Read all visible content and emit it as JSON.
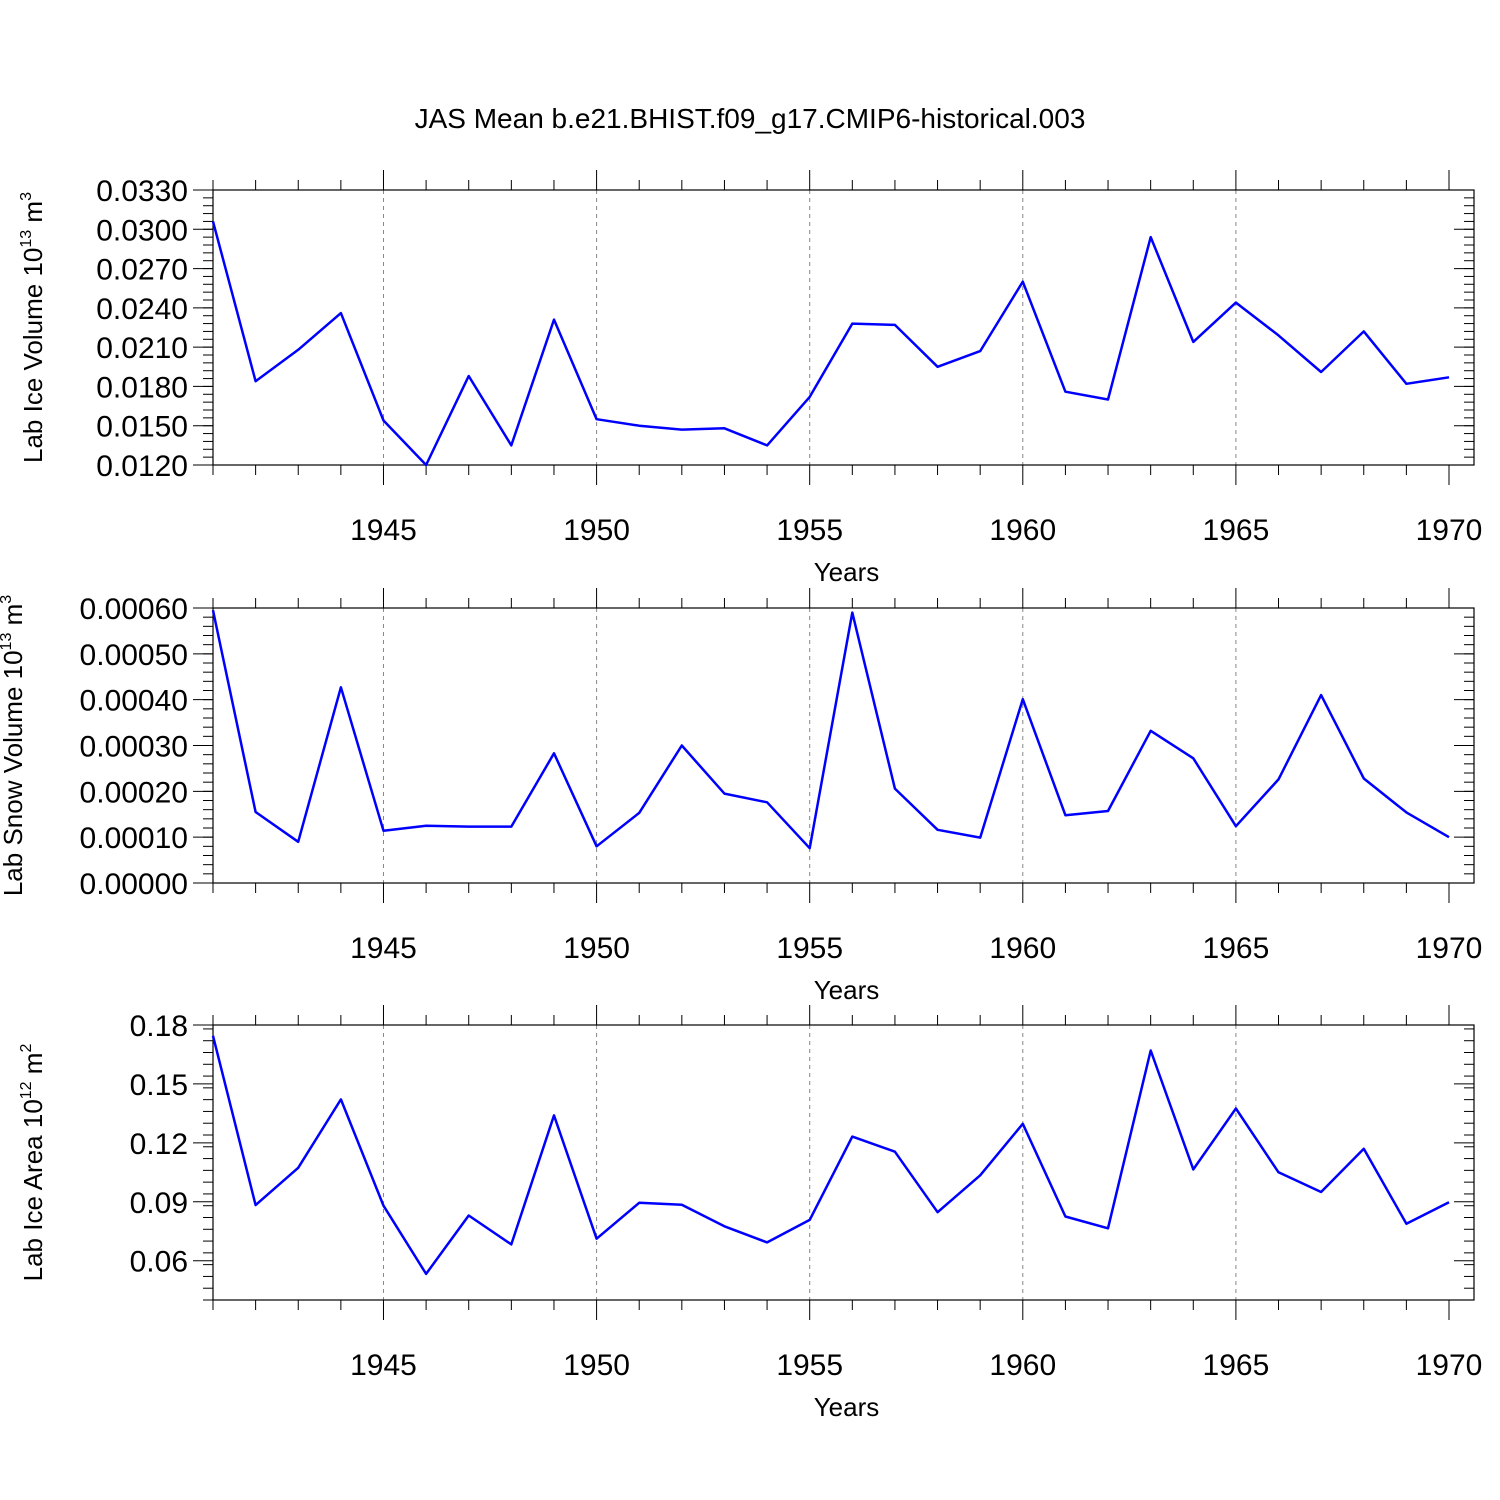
{
  "title": "JAS Mean b.e21.BHIST.f09_g17.CMIP6-historical.003",
  "colors": {
    "line": "#0000ff",
    "frame": "#000000",
    "grid": "#888888"
  },
  "chart_data": [
    {
      "type": "line",
      "ylabel_main": "Lab Ice Volume 10",
      "ylabel_exp": "13",
      "ylabel_unit": " m",
      "ylabel_unit_exp": "3",
      "xlabel": "Years",
      "xlim": [
        1941,
        1970
      ],
      "ylim": [
        0.012,
        0.033
      ],
      "yticks": [
        "0.0120",
        "0.0150",
        "0.0180",
        "0.0210",
        "0.0240",
        "0.0270",
        "0.0300",
        "0.0330"
      ],
      "xticks": [
        "1945",
        "1950",
        "1955",
        "1960",
        "1965",
        "1970"
      ],
      "grid_x": [
        1945,
        1950,
        1955,
        1960,
        1965
      ],
      "x": [
        1941,
        1942,
        1943,
        1944,
        1945,
        1946,
        1947,
        1948,
        1949,
        1950,
        1951,
        1952,
        1953,
        1954,
        1955,
        1956,
        1957,
        1958,
        1959,
        1960,
        1961,
        1962,
        1963,
        1964,
        1965,
        1966,
        1967,
        1968,
        1969,
        1970
      ],
      "values": [
        0.0306,
        0.0184,
        0.0208,
        0.0236,
        0.0154,
        0.012,
        0.0188,
        0.0135,
        0.0231,
        0.0155,
        0.015,
        0.0147,
        0.0148,
        0.0135,
        0.0172,
        0.0228,
        0.0227,
        0.0195,
        0.0207,
        0.026,
        0.0176,
        0.017,
        0.0294,
        0.0214,
        0.0244,
        0.0219,
        0.0191,
        0.0222,
        0.0182,
        0.0187
      ]
    },
    {
      "type": "line",
      "ylabel_main": "Lab Snow Volume 10",
      "ylabel_exp": "13",
      "ylabel_unit": " m",
      "ylabel_unit_exp": "3",
      "xlabel": "Years",
      "xlim": [
        1941,
        1970
      ],
      "ylim": [
        0.0,
        0.0006
      ],
      "yticks": [
        "0.00000",
        "0.00010",
        "0.00020",
        "0.00030",
        "0.00040",
        "0.00050",
        "0.00060"
      ],
      "xticks": [
        "1945",
        "1950",
        "1955",
        "1960",
        "1965",
        "1970"
      ],
      "grid_x": [
        1945,
        1950,
        1955,
        1960,
        1965
      ],
      "x": [
        1941,
        1942,
        1943,
        1944,
        1945,
        1946,
        1947,
        1948,
        1949,
        1950,
        1951,
        1952,
        1953,
        1954,
        1955,
        1956,
        1957,
        1958,
        1959,
        1960,
        1961,
        1962,
        1963,
        1964,
        1965,
        1966,
        1967,
        1968,
        1969,
        1970
      ],
      "values": [
        0.000595,
        0.000155,
        9e-05,
        0.000427,
        0.000114,
        0.000125,
        0.000123,
        0.000123,
        0.000283,
        8e-05,
        0.000153,
        0.0003,
        0.000195,
        0.000176,
        7.6e-05,
        0.00059,
        0.000206,
        0.000116,
        9.9e-05,
        0.000401,
        0.000148,
        0.000157,
        0.000332,
        0.000272,
        0.000124,
        0.000226,
        0.00041,
        0.000228,
        0.000154,
        0.0001
      ]
    },
    {
      "type": "line",
      "ylabel_main": "Lab Ice Area 10",
      "ylabel_exp": "12",
      "ylabel_unit": " m",
      "ylabel_unit_exp": "2",
      "xlabel": "Years",
      "xlim": [
        1941,
        1970
      ],
      "ylim": [
        0.04,
        0.18
      ],
      "yticks": [
        "0.06",
        "0.09",
        "0.12",
        "0.15",
        "0.18"
      ],
      "ytick_values": [
        0.06,
        0.09,
        0.12,
        0.15,
        0.18
      ],
      "xticks": [
        "1945",
        "1950",
        "1955",
        "1960",
        "1965",
        "1970"
      ],
      "grid_x": [
        1945,
        1950,
        1955,
        1960,
        1965
      ],
      "x": [
        1941,
        1942,
        1943,
        1944,
        1945,
        1946,
        1947,
        1948,
        1949,
        1950,
        1951,
        1952,
        1953,
        1954,
        1955,
        1956,
        1957,
        1958,
        1959,
        1960,
        1961,
        1962,
        1963,
        1964,
        1965,
        1966,
        1967,
        1968,
        1969,
        1970
      ],
      "values": [
        0.1745,
        0.0883,
        0.1073,
        0.1421,
        0.088,
        0.0533,
        0.083,
        0.0683,
        0.134,
        0.0712,
        0.0895,
        0.0885,
        0.0775,
        0.0693,
        0.0808,
        0.1232,
        0.1155,
        0.0847,
        0.1035,
        0.1297,
        0.0825,
        0.0765,
        0.167,
        0.1065,
        0.1375,
        0.105,
        0.095,
        0.117,
        0.0788,
        0.0898
      ]
    }
  ]
}
